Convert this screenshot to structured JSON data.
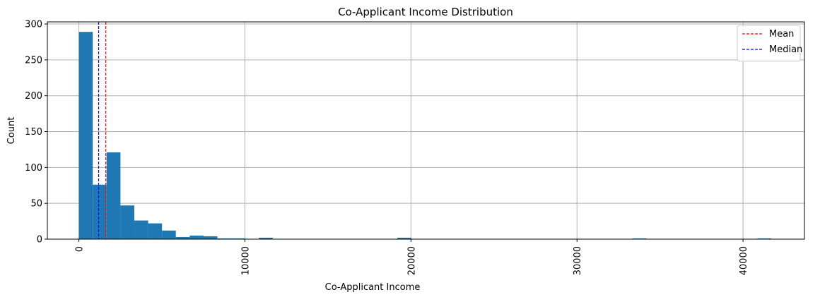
{
  "chart_data": {
    "type": "bar",
    "subtype": "histogram",
    "title": "Co-Applicant Income Distribution",
    "xlabel": "Co-Applicant Income",
    "ylabel": "Count",
    "xlim": [
      -1900,
      43700
    ],
    "ylim": [
      0,
      303
    ],
    "grid": true,
    "legend_position": "top-right",
    "bar_color": "#1f77b4",
    "bin_width": 834,
    "bins": [
      {
        "x0": 0,
        "count": 289
      },
      {
        "x0": 834,
        "count": 76
      },
      {
        "x0": 1668,
        "count": 121
      },
      {
        "x0": 2502,
        "count": 47
      },
      {
        "x0": 3336,
        "count": 26
      },
      {
        "x0": 4170,
        "count": 22
      },
      {
        "x0": 5004,
        "count": 12
      },
      {
        "x0": 5838,
        "count": 3
      },
      {
        "x0": 6672,
        "count": 5
      },
      {
        "x0": 7506,
        "count": 4
      },
      {
        "x0": 8340,
        "count": 1
      },
      {
        "x0": 9174,
        "count": 1
      },
      {
        "x0": 10842,
        "count": 2
      },
      {
        "x0": 19182,
        "count": 2
      },
      {
        "x0": 33360,
        "count": 1
      },
      {
        "x0": 40866,
        "count": 1
      }
    ],
    "x_ticks": [
      {
        "value": 0,
        "label": "0"
      },
      {
        "value": 10000,
        "label": "10000"
      },
      {
        "value": 20000,
        "label": "20000"
      },
      {
        "value": 30000,
        "label": "30000"
      },
      {
        "value": 40000,
        "label": "40000"
      }
    ],
    "y_ticks": [
      {
        "value": 0,
        "label": "0"
      },
      {
        "value": 50,
        "label": "50"
      },
      {
        "value": 100,
        "label": "100"
      },
      {
        "value": 150,
        "label": "150"
      },
      {
        "value": 200,
        "label": "200"
      },
      {
        "value": 250,
        "label": "250"
      },
      {
        "value": 300,
        "label": "300"
      }
    ],
    "reference_lines": [
      {
        "name": "Mean",
        "value": 1621,
        "color": "#ff0000",
        "style": "dashed"
      },
      {
        "name": "Median",
        "value": 1189,
        "color": "#0000ff",
        "style": "dashed"
      }
    ]
  }
}
